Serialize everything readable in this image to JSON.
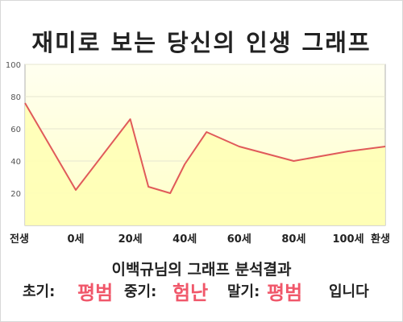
{
  "title": "재미로 보는 당신의 인생 그래프",
  "analysis_title": "이백규님의 그래프 분석결과",
  "result": {
    "early_label": "초기:",
    "early_value": "평범",
    "middle_label": "중기:",
    "middle_value": "험난",
    "late_label": "말기:",
    "late_value": "평범",
    "ending": "입니다"
  },
  "colors": {
    "plot_bg_top": "#fffff0",
    "plot_bg_bottom": "#ffffc8",
    "line": "#e05a5a",
    "fill": "#ffffb4",
    "accent": "#f0576a"
  },
  "chart_data": {
    "type": "area",
    "title": "재미로 보는 당신의 인생 그래프",
    "categories": [
      "전생",
      "0세",
      "20세",
      "40세",
      "60세",
      "80세",
      "100세",
      "환생"
    ],
    "x": [
      -0.15,
      0,
      0.2,
      0.2667,
      0.3467,
      0.4,
      0.48,
      0.6,
      0.8,
      1.0,
      1.1
    ],
    "x_tick_positions": [
      -0.15,
      0,
      0.2,
      0.4,
      0.6,
      0.8,
      1.0,
      1.15
    ],
    "values": [
      76,
      22,
      66,
      24,
      20,
      38,
      58,
      49,
      40,
      46,
      49
    ],
    "ylim": [
      0,
      100
    ],
    "yticks": [
      20,
      40,
      60,
      80,
      100
    ],
    "grid": true
  }
}
